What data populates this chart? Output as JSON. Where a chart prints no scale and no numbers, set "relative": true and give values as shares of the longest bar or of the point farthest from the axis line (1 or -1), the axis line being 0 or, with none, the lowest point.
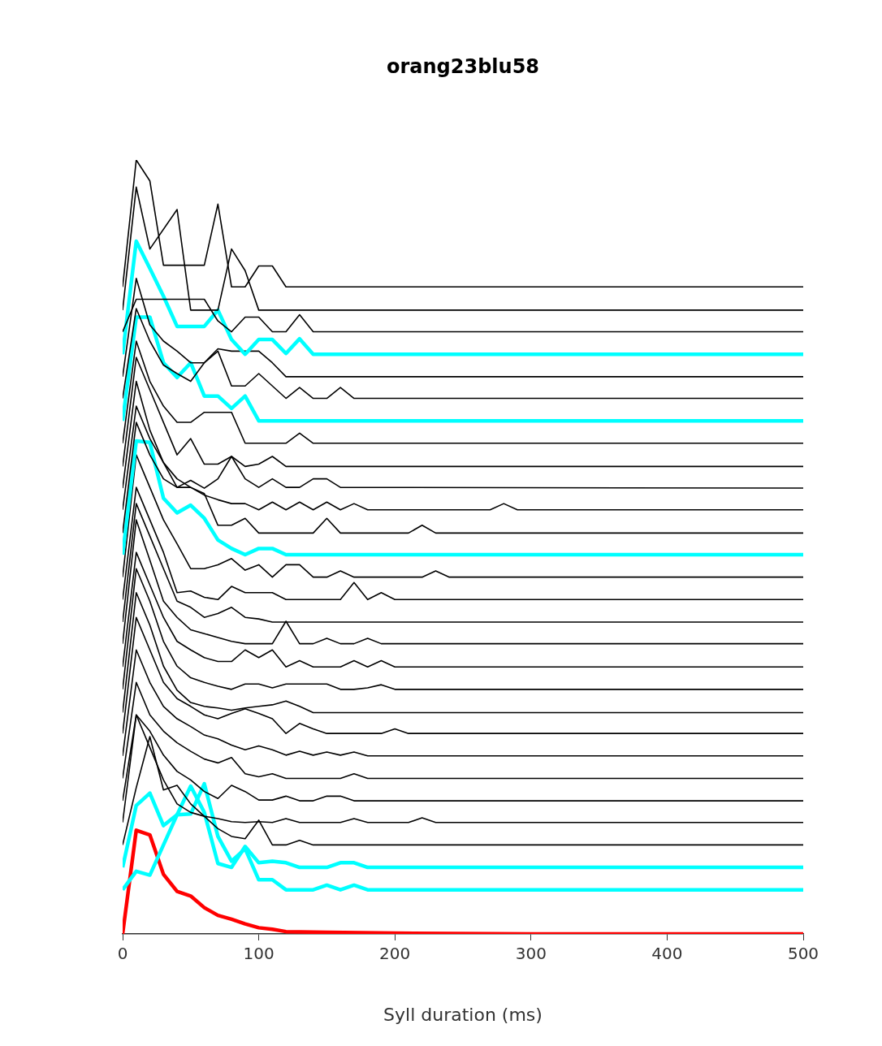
{
  "chart_data": {
    "type": "line",
    "title": "orang23blu58",
    "xlabel": "Syll duration (ms)",
    "relative": true,
    "xlim": [
      0,
      500
    ],
    "xticks": [
      0,
      100,
      200,
      300,
      400,
      500
    ],
    "grid": false,
    "legend": false,
    "marker": "none",
    "line_style": "solid",
    "series": [
      {
        "color": "#000000",
        "x": [
          0,
          10,
          20,
          30,
          60,
          70,
          80,
          90,
          100,
          110,
          120,
          500
        ],
        "values": [
          0.836,
          1.0,
          0.973,
          0.864,
          0.864,
          0.943,
          0.836,
          0.836,
          0.863,
          0.863,
          0.836,
          0.836
        ]
      },
      {
        "color": "#000000",
        "x": [
          0,
          10,
          20,
          40,
          50,
          70,
          80,
          90,
          100,
          500
        ],
        "values": [
          0.806,
          0.965,
          0.885,
          0.936,
          0.806,
          0.806,
          0.885,
          0.857,
          0.806,
          0.806
        ]
      },
      {
        "color": "#000000",
        "x": [
          0,
          10,
          20,
          30,
          40,
          50,
          60,
          70,
          80,
          90,
          100,
          110,
          120,
          130,
          140,
          500
        ],
        "values": [
          0.778,
          0.82,
          0.82,
          0.82,
          0.82,
          0.82,
          0.82,
          0.792,
          0.778,
          0.797,
          0.797,
          0.778,
          0.778,
          0.8,
          0.778,
          0.778
        ]
      },
      {
        "color": "#00ffff",
        "x": [
          0,
          10,
          20,
          30,
          40,
          50,
          60,
          70,
          80,
          90,
          100,
          110,
          120,
          130,
          140,
          500
        ],
        "values": [
          0.749,
          0.895,
          0.86,
          0.824,
          0.785,
          0.785,
          0.785,
          0.806,
          0.768,
          0.749,
          0.768,
          0.768,
          0.75,
          0.769,
          0.749,
          0.749
        ]
      },
      {
        "color": "#000000",
        "x": [
          0,
          10,
          20,
          30,
          40,
          50,
          60,
          70,
          80,
          90,
          100,
          110,
          120,
          500
        ],
        "values": [
          0.72,
          0.847,
          0.787,
          0.766,
          0.753,
          0.738,
          0.738,
          0.756,
          0.753,
          0.753,
          0.753,
          0.738,
          0.72,
          0.72
        ]
      },
      {
        "color": "#000000",
        "x": [
          0,
          10,
          20,
          30,
          40,
          50,
          60,
          70,
          80,
          90,
          100,
          110,
          120,
          130,
          140,
          150,
          160,
          170,
          500
        ],
        "values": [
          0.692,
          0.808,
          0.766,
          0.735,
          0.724,
          0.714,
          0.738,
          0.753,
          0.708,
          0.708,
          0.724,
          0.708,
          0.692,
          0.706,
          0.692,
          0.692,
          0.706,
          0.692,
          0.692
        ]
      },
      {
        "color": "#00ffff",
        "x": [
          0,
          10,
          20,
          30,
          40,
          50,
          60,
          70,
          80,
          90,
          100,
          500
        ],
        "values": [
          0.663,
          0.797,
          0.797,
          0.738,
          0.719,
          0.738,
          0.695,
          0.695,
          0.679,
          0.695,
          0.663,
          0.663
        ]
      },
      {
        "color": "#000000",
        "x": [
          0,
          10,
          20,
          30,
          40,
          50,
          60,
          70,
          80,
          90,
          120,
          130,
          140,
          500
        ],
        "values": [
          0.634,
          0.766,
          0.714,
          0.682,
          0.661,
          0.661,
          0.674,
          0.674,
          0.674,
          0.634,
          0.634,
          0.647,
          0.634,
          0.634
        ]
      },
      {
        "color": "#000000",
        "x": [
          0,
          10,
          20,
          30,
          40,
          50,
          60,
          70,
          80,
          90,
          100,
          110,
          120,
          500
        ],
        "values": [
          0.604,
          0.745,
          0.703,
          0.661,
          0.619,
          0.64,
          0.607,
          0.607,
          0.617,
          0.604,
          0.607,
          0.617,
          0.604,
          0.604
        ]
      },
      {
        "color": "#000000",
        "x": [
          0,
          10,
          20,
          30,
          40,
          50,
          60,
          70,
          80,
          90,
          100,
          110,
          120,
          130,
          140,
          150,
          160,
          500
        ],
        "values": [
          0.576,
          0.714,
          0.651,
          0.609,
          0.577,
          0.586,
          0.576,
          0.588,
          0.617,
          0.588,
          0.577,
          0.588,
          0.577,
          0.577,
          0.588,
          0.588,
          0.577,
          0.576
        ]
      },
      {
        "color": "#000000",
        "x": [
          0,
          10,
          20,
          30,
          40,
          50,
          60,
          70,
          80,
          90,
          100,
          110,
          120,
          130,
          140,
          150,
          160,
          170,
          180,
          270,
          280,
          290,
          500
        ],
        "values": [
          0.548,
          0.682,
          0.64,
          0.609,
          0.588,
          0.577,
          0.567,
          0.561,
          0.556,
          0.556,
          0.548,
          0.558,
          0.548,
          0.558,
          0.548,
          0.558,
          0.548,
          0.556,
          0.548,
          0.548,
          0.556,
          0.548,
          0.548
        ]
      },
      {
        "color": "#000000",
        "x": [
          0,
          10,
          20,
          30,
          40,
          50,
          60,
          70,
          80,
          90,
          100,
          140,
          150,
          160,
          210,
          220,
          230,
          500
        ],
        "values": [
          0.518,
          0.661,
          0.619,
          0.588,
          0.577,
          0.577,
          0.569,
          0.528,
          0.528,
          0.537,
          0.518,
          0.518,
          0.537,
          0.518,
          0.518,
          0.528,
          0.518,
          0.518
        ]
      },
      {
        "color": "#00ffff",
        "x": [
          0,
          10,
          20,
          30,
          40,
          50,
          60,
          70,
          80,
          90,
          100,
          110,
          120,
          500
        ],
        "values": [
          0.49,
          0.637,
          0.635,
          0.563,
          0.544,
          0.554,
          0.537,
          0.509,
          0.498,
          0.49,
          0.498,
          0.498,
          0.49,
          0.49
        ]
      },
      {
        "color": "#000000",
        "x": [
          0,
          10,
          20,
          30,
          40,
          50,
          60,
          70,
          80,
          90,
          100,
          110,
          120,
          130,
          140,
          150,
          160,
          170,
          220,
          230,
          240,
          500
        ],
        "values": [
          0.461,
          0.619,
          0.577,
          0.535,
          0.504,
          0.472,
          0.472,
          0.477,
          0.485,
          0.47,
          0.477,
          0.461,
          0.477,
          0.477,
          0.461,
          0.461,
          0.469,
          0.461,
          0.461,
          0.469,
          0.461,
          0.461
        ]
      },
      {
        "color": "#000000",
        "x": [
          0,
          10,
          20,
          30,
          40,
          50,
          60,
          70,
          80,
          90,
          100,
          110,
          120,
          160,
          170,
          180,
          190,
          200,
          500
        ],
        "values": [
          0.432,
          0.577,
          0.535,
          0.493,
          0.441,
          0.443,
          0.435,
          0.432,
          0.449,
          0.441,
          0.441,
          0.441,
          0.432,
          0.432,
          0.454,
          0.432,
          0.441,
          0.432,
          0.432
        ]
      },
      {
        "color": "#000000",
        "x": [
          0,
          10,
          20,
          30,
          40,
          50,
          60,
          70,
          80,
          90,
          100,
          110,
          500
        ],
        "values": [
          0.403,
          0.556,
          0.514,
          0.472,
          0.43,
          0.422,
          0.409,
          0.414,
          0.422,
          0.409,
          0.407,
          0.403,
          0.403
        ]
      },
      {
        "color": "#000000",
        "x": [
          0,
          10,
          20,
          30,
          40,
          50,
          60,
          70,
          80,
          90,
          100,
          110,
          120,
          130,
          140,
          150,
          160,
          170,
          180,
          190,
          500
        ],
        "values": [
          0.375,
          0.535,
          0.483,
          0.43,
          0.409,
          0.393,
          0.388,
          0.383,
          0.378,
          0.375,
          0.375,
          0.375,
          0.404,
          0.375,
          0.375,
          0.382,
          0.375,
          0.375,
          0.382,
          0.375,
          0.375
        ]
      },
      {
        "color": "#000000",
        "x": [
          0,
          10,
          20,
          30,
          40,
          50,
          60,
          70,
          80,
          90,
          100,
          110,
          120,
          130,
          140,
          160,
          170,
          180,
          190,
          200,
          500
        ],
        "values": [
          0.345,
          0.493,
          0.451,
          0.409,
          0.378,
          0.367,
          0.357,
          0.352,
          0.352,
          0.367,
          0.357,
          0.367,
          0.345,
          0.353,
          0.345,
          0.345,
          0.353,
          0.345,
          0.353,
          0.345,
          0.345
        ]
      },
      {
        "color": "#000000",
        "x": [
          0,
          10,
          20,
          30,
          40,
          50,
          60,
          70,
          80,
          90,
          100,
          110,
          120,
          130,
          140,
          150,
          160,
          170,
          180,
          190,
          200,
          500
        ],
        "values": [
          0.316,
          0.472,
          0.43,
          0.378,
          0.346,
          0.331,
          0.325,
          0.32,
          0.316,
          0.323,
          0.323,
          0.318,
          0.323,
          0.323,
          0.323,
          0.323,
          0.316,
          0.316,
          0.318,
          0.322,
          0.316,
          0.316
        ]
      },
      {
        "color": "#000000",
        "x": [
          0,
          10,
          20,
          30,
          40,
          50,
          60,
          70,
          80,
          90,
          100,
          110,
          120,
          130,
          140,
          500
        ],
        "values": [
          0.286,
          0.441,
          0.399,
          0.346,
          0.315,
          0.299,
          0.294,
          0.292,
          0.289,
          0.292,
          0.294,
          0.296,
          0.301,
          0.294,
          0.286,
          0.286
        ]
      },
      {
        "color": "#000000",
        "x": [
          0,
          10,
          20,
          30,
          40,
          50,
          60,
          70,
          80,
          90,
          100,
          110,
          120,
          130,
          140,
          150,
          190,
          200,
          210,
          500
        ],
        "values": [
          0.259,
          0.409,
          0.367,
          0.325,
          0.304,
          0.294,
          0.283,
          0.278,
          0.285,
          0.291,
          0.285,
          0.278,
          0.259,
          0.272,
          0.265,
          0.259,
          0.259,
          0.265,
          0.259,
          0.259
        ]
      },
      {
        "color": "#000000",
        "x": [
          0,
          10,
          20,
          30,
          40,
          50,
          60,
          70,
          80,
          90,
          100,
          110,
          120,
          130,
          140,
          150,
          160,
          170,
          180,
          500
        ],
        "values": [
          0.23,
          0.367,
          0.325,
          0.294,
          0.278,
          0.268,
          0.257,
          0.252,
          0.244,
          0.238,
          0.243,
          0.238,
          0.231,
          0.236,
          0.231,
          0.235,
          0.231,
          0.235,
          0.23,
          0.23
        ]
      },
      {
        "color": "#000000",
        "x": [
          0,
          10,
          20,
          30,
          40,
          50,
          60,
          70,
          80,
          90,
          100,
          110,
          120,
          160,
          170,
          180,
          500
        ],
        "values": [
          0.201,
          0.325,
          0.283,
          0.262,
          0.247,
          0.236,
          0.226,
          0.221,
          0.228,
          0.207,
          0.203,
          0.207,
          0.201,
          0.201,
          0.207,
          0.201,
          0.201
        ]
      },
      {
        "color": "#000000",
        "x": [
          0,
          10,
          20,
          30,
          40,
          50,
          60,
          70,
          80,
          90,
          100,
          110,
          120,
          130,
          140,
          150,
          160,
          170,
          500
        ],
        "values": [
          0.172,
          0.283,
          0.262,
          0.231,
          0.21,
          0.199,
          0.184,
          0.175,
          0.192,
          0.184,
          0.173,
          0.173,
          0.178,
          0.172,
          0.172,
          0.178,
          0.178,
          0.172,
          0.172
        ]
      },
      {
        "color": "#000000",
        "x": [
          0,
          10,
          20,
          30,
          40,
          50,
          60,
          70,
          80,
          90,
          100,
          110,
          120,
          130,
          160,
          170,
          180,
          210,
          220,
          230,
          500
        ],
        "values": [
          0.144,
          0.283,
          0.241,
          0.199,
          0.168,
          0.157,
          0.152,
          0.149,
          0.145,
          0.144,
          0.145,
          0.144,
          0.149,
          0.144,
          0.144,
          0.149,
          0.144,
          0.144,
          0.15,
          0.144,
          0.144
        ]
      },
      {
        "color": "#000000",
        "x": [
          0,
          10,
          20,
          30,
          40,
          50,
          60,
          70,
          80,
          90,
          100,
          110,
          120,
          130,
          140,
          500
        ],
        "values": [
          0.115,
          0.189,
          0.255,
          0.186,
          0.192,
          0.168,
          0.152,
          0.136,
          0.126,
          0.123,
          0.147,
          0.115,
          0.115,
          0.121,
          0.115,
          0.115
        ]
      },
      {
        "color": "#00ffff",
        "x": [
          0,
          10,
          20,
          30,
          40,
          50,
          60,
          70,
          80,
          90,
          100,
          110,
          120,
          130,
          140,
          150,
          160,
          170,
          180,
          500
        ],
        "values": [
          0.086,
          0.166,
          0.182,
          0.14,
          0.154,
          0.191,
          0.157,
          0.091,
          0.086,
          0.113,
          0.092,
          0.094,
          0.092,
          0.086,
          0.086,
          0.086,
          0.092,
          0.092,
          0.086,
          0.086
        ]
      },
      {
        "color": "#00ffff",
        "x": [
          0,
          10,
          20,
          30,
          40,
          50,
          60,
          70,
          80,
          90,
          100,
          110,
          120,
          140,
          150,
          160,
          170,
          180,
          500
        ],
        "values": [
          0.057,
          0.081,
          0.076,
          0.115,
          0.154,
          0.155,
          0.194,
          0.126,
          0.094,
          0.11,
          0.07,
          0.07,
          0.057,
          0.057,
          0.063,
          0.057,
          0.063,
          0.057,
          0.057
        ]
      },
      {
        "color": "#ff0000",
        "x": [
          0,
          10,
          20,
          30,
          40,
          50,
          60,
          70,
          80,
          90,
          100,
          110,
          120,
          150,
          200,
          300,
          500
        ],
        "values": [
          0,
          0.134,
          0.128,
          0.077,
          0.055,
          0.049,
          0.034,
          0.024,
          0.019,
          0.013,
          0.008,
          0.006,
          0.003,
          0.002,
          0.001,
          0,
          0
        ]
      }
    ]
  }
}
